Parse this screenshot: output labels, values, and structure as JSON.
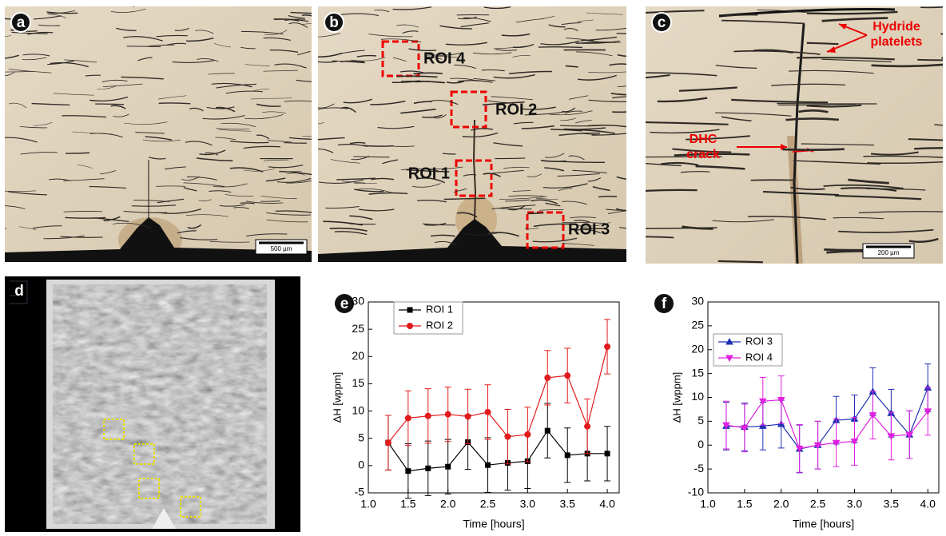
{
  "panels": {
    "a": {
      "label": "a",
      "scale_bar": "500 µm"
    },
    "b": {
      "label": "b",
      "roi_labels": [
        "ROI 4",
        "ROI 2",
        "ROI 1",
        "ROI 3"
      ]
    },
    "c": {
      "label": "c",
      "scale_bar": "200 µm",
      "annotations": [
        [
          "Hydride",
          "platelets"
        ],
        [
          "DHC",
          "crack"
        ]
      ]
    },
    "d": {
      "label": "d"
    }
  },
  "chart_data": [
    {
      "type": "line",
      "panel": "e",
      "x_label": "Time [hours]",
      "y_label": "ΔH [wppm]",
      "x": [
        1.25,
        1.5,
        1.75,
        2.0,
        2.25,
        2.5,
        2.75,
        3.0,
        3.25,
        3.5,
        3.75,
        4.0
      ],
      "series": [
        {
          "name": "ROI 1",
          "color": "#000000",
          "marker": "square",
          "values": [
            4.2,
            -1,
            -0.5,
            -0.2,
            4.3,
            0.1,
            0.5,
            0.8,
            6.4,
            1.9,
            2.2,
            2.2
          ],
          "errors": [
            5,
            5,
            5,
            5,
            5,
            5,
            5,
            5,
            5,
            5,
            5,
            5
          ]
        },
        {
          "name": "ROI 2",
          "color": "#e31a1c",
          "marker": "circle",
          "values": [
            4.2,
            8.7,
            9.1,
            9.4,
            9.0,
            9.8,
            5.3,
            5.7,
            16.1,
            16.5,
            7.2,
            21.8
          ],
          "errors": [
            5,
            5,
            5,
            5,
            5,
            5,
            5,
            5,
            5,
            5,
            5,
            5
          ]
        }
      ],
      "xlim": [
        1,
        4.15
      ],
      "xticks": [
        {
          "value": 1,
          "label": "1.0"
        },
        1.5,
        {
          "value": 2,
          "label": "2.0"
        },
        2.5,
        {
          "value": 3,
          "label": "3.0"
        },
        3.5,
        {
          "value": 4,
          "label": "4.0"
        }
      ],
      "ylim": [
        -5,
        30
      ],
      "yticks": [
        -5,
        0,
        5,
        10,
        15,
        20,
        25,
        30
      ],
      "legend": "upper left"
    },
    {
      "type": "line",
      "panel": "f",
      "x_label": "Time [hours]",
      "y_label": "ΔH [wppm]",
      "x": [
        1.25,
        1.5,
        1.75,
        2.0,
        2.25,
        2.5,
        2.75,
        3.0,
        3.25,
        3.5,
        3.75,
        4.0
      ],
      "series": [
        {
          "name": "ROI 3",
          "color": "#1f2fb4",
          "marker": "triangle-up",
          "values": [
            4.0,
            3.8,
            4.0,
            4.4,
            -0.8,
            0.0,
            5.2,
            5.5,
            11.2,
            6.7,
            2.2,
            12.0
          ],
          "errors": [
            5,
            5,
            5,
            5,
            5,
            5,
            5,
            5,
            5,
            5,
            5,
            5
          ]
        },
        {
          "name": "ROI 4",
          "color": "#e020e0",
          "marker": "triangle-down",
          "values": [
            4.2,
            3.6,
            9.2,
            9.5,
            -0.7,
            0.0,
            0.5,
            0.8,
            6.3,
            1.9,
            2.2,
            7.1
          ],
          "errors": [
            5,
            5,
            5,
            5,
            5,
            5,
            5,
            5,
            5,
            5,
            5,
            5
          ]
        }
      ],
      "xlim": [
        1,
        4.15
      ],
      "xticks": [
        {
          "value": 1,
          "label": "1.0"
        },
        1.5,
        {
          "value": 2,
          "label": "2.0"
        },
        2.5,
        {
          "value": 3,
          "label": "3.0"
        },
        3.5,
        {
          "value": 4,
          "label": "4.0"
        }
      ],
      "ylim": [
        -10,
        30
      ],
      "yticks": [
        -10,
        -5,
        0,
        5,
        10,
        15,
        20,
        25,
        30
      ],
      "legend": "upper left"
    }
  ]
}
